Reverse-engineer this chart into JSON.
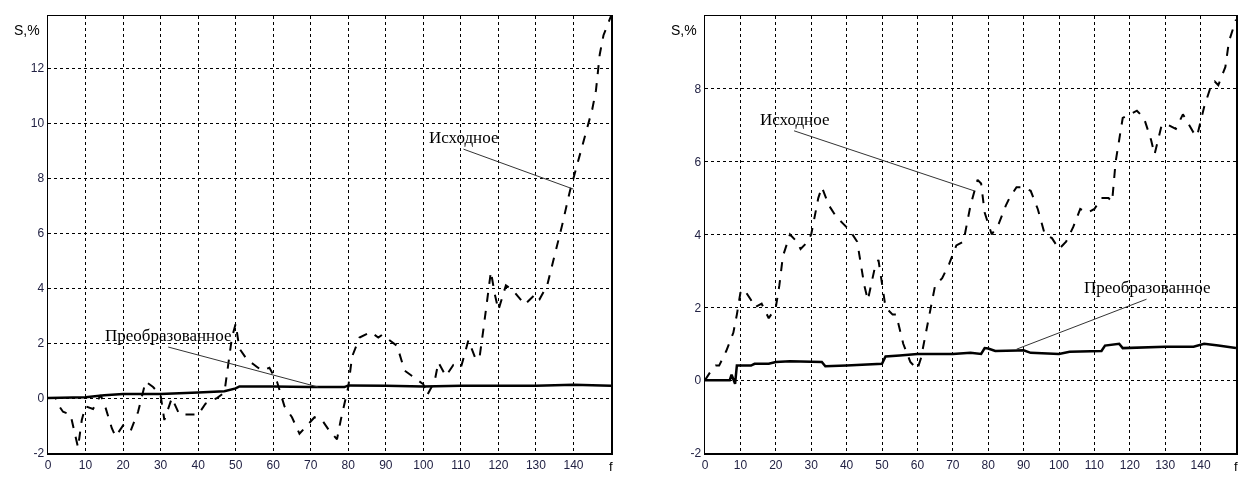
{
  "chart_data": [
    {
      "type": "line",
      "xlabel": "f",
      "ylabel": "S,%",
      "xlim": [
        0,
        150
      ],
      "ylim": [
        -2,
        13.9
      ],
      "xticks": [
        0,
        10,
        20,
        30,
        40,
        50,
        60,
        70,
        80,
        90,
        100,
        110,
        120,
        130,
        140
      ],
      "yticks": [
        -2,
        0,
        2,
        4,
        6,
        8,
        10,
        12
      ],
      "grid": true,
      "marker": "none",
      "series": [
        {
          "color": "#000000",
          "line_style": "dashed",
          "x": [
            0,
            2,
            3,
            4,
            6,
            7,
            8,
            9,
            10,
            12,
            14,
            15,
            17,
            18,
            20,
            22,
            24,
            26,
            28,
            30,
            31,
            33,
            35,
            37,
            40,
            42,
            45,
            47,
            49,
            50,
            51,
            53,
            55,
            57,
            59,
            61,
            63,
            65,
            67,
            69,
            71,
            73,
            75,
            77,
            78,
            80,
            81,
            83,
            86,
            88,
            89,
            91,
            93,
            95,
            97,
            100,
            101,
            103,
            104,
            106,
            108,
            110,
            112,
            114,
            115,
            116,
            118,
            119,
            120,
            122,
            124,
            127,
            130,
            131,
            133,
            135,
            137,
            139,
            141,
            143,
            145,
            146,
            147,
            148,
            150
          ],
          "values": [
            0,
            0,
            -0.3,
            -0.5,
            -0.6,
            -1.2,
            -1.8,
            -0.8,
            -0.3,
            -0.4,
            0.1,
            -0.2,
            -1.1,
            -1.4,
            -1.0,
            -1.2,
            -0.5,
            0.6,
            0.4,
            0.1,
            -0.8,
            0.0,
            -0.6,
            -0.6,
            -0.6,
            -0.2,
            0.0,
            0.2,
            2.2,
            2.7,
            1.8,
            1.4,
            1.2,
            1.0,
            1.1,
            0.6,
            -0.3,
            -0.7,
            -1.3,
            -1.0,
            -0.7,
            -0.8,
            -1.2,
            -1.5,
            -0.8,
            0.4,
            1.5,
            2.2,
            2.4,
            2.2,
            2.3,
            2.1,
            1.9,
            1.0,
            0.8,
            0.5,
            0.1,
            0.6,
            1.3,
            0.8,
            1.2,
            1.1,
            2.1,
            1.4,
            1.5,
            2.5,
            4.6,
            3.8,
            3.2,
            4.1,
            3.9,
            3.4,
            3.8,
            3.6,
            4.1,
            5.2,
            6.3,
            7.5,
            8.5,
            9.5,
            10.5,
            11.2,
            12.5,
            13.2,
            13.9
          ]
        },
        {
          "color": "#000000",
          "line_style": "solid",
          "x": [
            0,
            10,
            15,
            20,
            30,
            40,
            47,
            50,
            51,
            60,
            70,
            79,
            80,
            90,
            100,
            110,
            120,
            130,
            140,
            150
          ],
          "values": [
            0,
            0.03,
            0.1,
            0.15,
            0.15,
            0.2,
            0.25,
            0.35,
            0.42,
            0.42,
            0.4,
            0.4,
            0.46,
            0.45,
            0.42,
            0.45,
            0.45,
            0.45,
            0.48,
            0.45
          ]
        }
      ],
      "annotations": [
        {
          "text": "Исходное",
          "x": 140,
          "y": 7.6
        },
        {
          "text": "Преобразованное",
          "x": 72,
          "y": 0.4
        }
      ]
    },
    {
      "type": "line",
      "xlabel": "f",
      "ylabel": "S,%",
      "xlim": [
        0,
        150
      ],
      "ylim": [
        -2,
        10
      ],
      "xticks": [
        0,
        10,
        20,
        30,
        40,
        50,
        60,
        70,
        80,
        90,
        100,
        110,
        120,
        130,
        140
      ],
      "yticks": [
        -2,
        0,
        2,
        4,
        6,
        8
      ],
      "grid": true,
      "marker": "none",
      "series": [
        {
          "color": "#000000",
          "line_style": "dashed",
          "x": [
            0,
            2,
            3,
            4,
            6,
            8,
            9,
            10,
            11,
            13,
            14,
            16,
            18,
            20,
            21,
            22,
            24,
            26,
            27,
            29,
            30,
            32,
            33,
            35,
            37,
            39,
            41,
            43,
            45,
            46,
            48,
            49,
            51,
            53,
            54,
            56,
            58,
            60,
            61,
            63,
            65,
            67,
            69,
            71,
            73,
            75,
            77,
            78,
            79,
            81,
            83,
            85,
            86,
            88,
            90,
            92,
            94,
            96,
            98,
            100,
            102,
            104,
            106,
            108,
            110,
            112,
            114,
            115,
            116,
            118,
            120,
            122,
            124,
            126,
            127,
            129,
            131,
            133,
            135,
            138,
            139,
            141,
            143,
            144,
            145,
            147,
            148,
            150
          ],
          "values": [
            0,
            0.3,
            0.4,
            0.4,
            0.8,
            1.3,
            1.8,
            2.4,
            2.5,
            2.2,
            2.0,
            2.1,
            1.7,
            2.0,
            2.6,
            3.4,
            4.0,
            3.8,
            3.6,
            3.8,
            4.0,
            5.0,
            5.3,
            4.8,
            4.5,
            4.3,
            4.1,
            3.8,
            2.6,
            2.2,
            3.1,
            3.3,
            2.0,
            1.8,
            1.8,
            1.0,
            0.5,
            0.3,
            0.6,
            1.6,
            2.6,
            2.8,
            3.2,
            3.7,
            3.8,
            4.8,
            5.5,
            5.4,
            4.6,
            4.0,
            4.3,
            4.8,
            5.0,
            5.3,
            5.3,
            5.2,
            4.7,
            4.0,
            3.9,
            3.6,
            3.8,
            4.2,
            4.7,
            4.6,
            4.7,
            5.0,
            5.0,
            4.9,
            6.0,
            7.2,
            7.3,
            7.4,
            7.2,
            6.6,
            6.2,
            7.0,
            7.0,
            6.9,
            7.3,
            6.8,
            6.7,
            7.5,
            8.1,
            8.2,
            8.1,
            8.6,
            9.3,
            9.9
          ]
        },
        {
          "color": "#000000",
          "line_style": "solid",
          "x": [
            0,
            7,
            7.5,
            8.5,
            9,
            13,
            14,
            18,
            20,
            24,
            33,
            34,
            40,
            50,
            51,
            55,
            60,
            70,
            75,
            78,
            79,
            80,
            82,
            90,
            92,
            100,
            103,
            112,
            113,
            117,
            118,
            130,
            138,
            141,
            145,
            150
          ],
          "values": [
            0,
            0,
            0.15,
            -0.1,
            0.4,
            0.4,
            0.45,
            0.45,
            0.5,
            0.52,
            0.5,
            0.38,
            0.4,
            0.45,
            0.65,
            0.68,
            0.72,
            0.72,
            0.75,
            0.72,
            0.88,
            0.87,
            0.8,
            0.82,
            0.75,
            0.72,
            0.78,
            0.8,
            0.95,
            1.0,
            0.88,
            0.92,
            0.92,
            1.0,
            0.95,
            0.88
          ]
        }
      ],
      "annotations": [
        {
          "text": "Исходное",
          "x": 76,
          "y": 5.2
        },
        {
          "text": "Преобразованное",
          "x": 88,
          "y": 0.85
        }
      ]
    }
  ]
}
